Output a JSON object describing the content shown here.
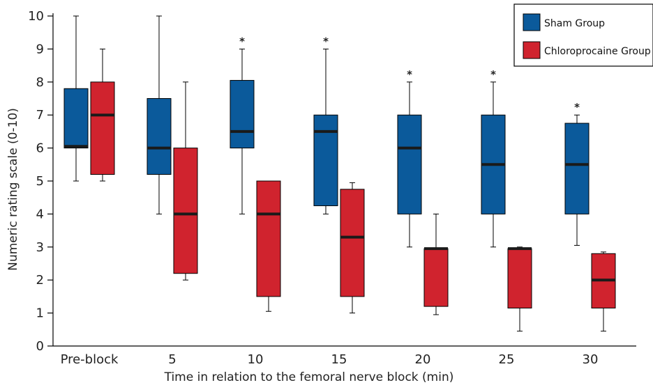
{
  "chart_data": {
    "type": "box",
    "xlabel": "Time in relation to the femoral nerve block (min)",
    "ylabel": "Numeric rating scale (0-10)",
    "ylim": [
      0,
      10
    ],
    "yticks": [
      0,
      1,
      2,
      3,
      4,
      5,
      6,
      7,
      8,
      9,
      10
    ],
    "categories": [
      "Pre-block",
      "5",
      "10",
      "15",
      "20",
      "25",
      "30"
    ],
    "legend_position": "top-right",
    "significance_marker": "*",
    "significant_categories": [
      "10",
      "15",
      "20",
      "25",
      "30"
    ],
    "series": [
      {
        "name": "Sham Group",
        "color": "#0b5a9b",
        "boxes": [
          {
            "min": 5,
            "q1": 6,
            "median": 6.05,
            "q3": 7.8,
            "max": 10
          },
          {
            "min": 4,
            "q1": 5.2,
            "median": 6,
            "q3": 7.5,
            "max": 10
          },
          {
            "min": 4,
            "q1": 6,
            "median": 6.5,
            "q3": 8.05,
            "max": 9
          },
          {
            "min": 4,
            "q1": 4.25,
            "median": 6.5,
            "q3": 7,
            "max": 9
          },
          {
            "min": 3,
            "q1": 4,
            "median": 6,
            "q3": 7,
            "max": 8
          },
          {
            "min": 3,
            "q1": 4,
            "median": 5.5,
            "q3": 7,
            "max": 8
          },
          {
            "min": 3.05,
            "q1": 4,
            "median": 5.5,
            "q3": 6.75,
            "max": 7
          }
        ]
      },
      {
        "name": "Chloroprocaine Group",
        "color": "#d0232e",
        "boxes": [
          {
            "min": 5,
            "q1": 5.2,
            "median": 7,
            "q3": 8,
            "max": 9
          },
          {
            "min": 2,
            "q1": 2.2,
            "median": 4,
            "q3": 6,
            "max": 8
          },
          {
            "min": 1.05,
            "q1": 1.5,
            "median": 4,
            "q3": 5,
            "max": 5
          },
          {
            "min": 1,
            "q1": 1.5,
            "median": 3.3,
            "q3": 4.75,
            "max": 4.95
          },
          {
            "min": 0.95,
            "q1": 1.2,
            "median": 2.95,
            "q3": 2.95,
            "max": 4
          },
          {
            "min": 0.45,
            "q1": 1.15,
            "median": 2.95,
            "q3": 2.95,
            "max": 3
          },
          {
            "min": 0.45,
            "q1": 1.15,
            "median": 2,
            "q3": 2.8,
            "max": 2.85
          }
        ]
      }
    ]
  }
}
